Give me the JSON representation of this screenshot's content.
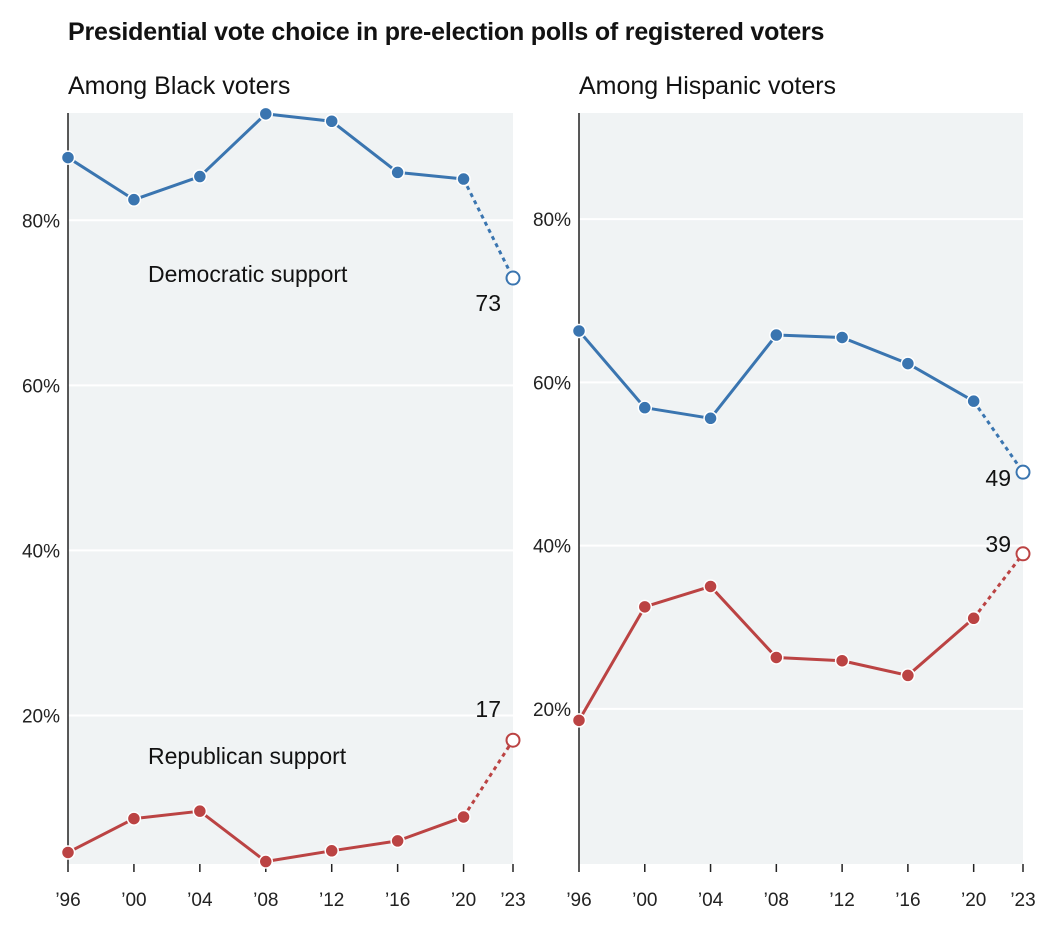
{
  "title": "Presidential vote choice in pre-election polls of registered voters",
  "colors": {
    "democratic": "#3a75b0",
    "republican": "#bb4343",
    "plot_bg": "#f0f3f4",
    "grid": "#ffffff"
  },
  "chart_data": [
    {
      "type": "line",
      "title": "Among Black voters",
      "categories": [
        "’96",
        "’00",
        "’04",
        "’08",
        "’12",
        "’16",
        "’20",
        "’23"
      ],
      "x": [
        1996,
        2000,
        2004,
        2008,
        2012,
        2016,
        2020,
        2023
      ],
      "ylim": [
        2,
        93
      ],
      "yticks": [
        20,
        40,
        60,
        80
      ],
      "ytick_labels": [
        "20%",
        "40%",
        "60%",
        "80%"
      ],
      "grid": true,
      "series": [
        {
          "name": "Democratic support",
          "key": "democratic",
          "values": [
            87.6,
            82.5,
            85.3,
            92.9,
            92.0,
            85.8,
            85.0,
            73.0
          ],
          "end_label": "73"
        },
        {
          "name": "Republican support",
          "key": "republican",
          "values": [
            3.4,
            7.5,
            8.4,
            2.3,
            3.6,
            4.8,
            7.7,
            17.0
          ],
          "end_label": "17"
        }
      ]
    },
    {
      "type": "line",
      "title": "Among Hispanic voters",
      "categories": [
        "’96",
        "’00",
        "’04",
        "’08",
        "’12",
        "’16",
        "’20",
        "’23"
      ],
      "x": [
        1996,
        2000,
        2004,
        2008,
        2012,
        2016,
        2020,
        2023
      ],
      "ylim": [
        1,
        93
      ],
      "yticks": [
        20,
        40,
        60,
        80
      ],
      "ytick_labels": [
        "20%",
        "40%",
        "60%",
        "80%"
      ],
      "grid": true,
      "series": [
        {
          "name": "",
          "key": "democratic",
          "values": [
            66.3,
            56.9,
            55.6,
            65.8,
            65.5,
            62.3,
            57.7,
            49.0
          ],
          "end_label": "49"
        },
        {
          "name": "",
          "key": "republican",
          "values": [
            18.6,
            32.5,
            35.0,
            26.3,
            25.9,
            24.1,
            31.1,
            39.0
          ],
          "end_label": "39"
        }
      ]
    }
  ]
}
